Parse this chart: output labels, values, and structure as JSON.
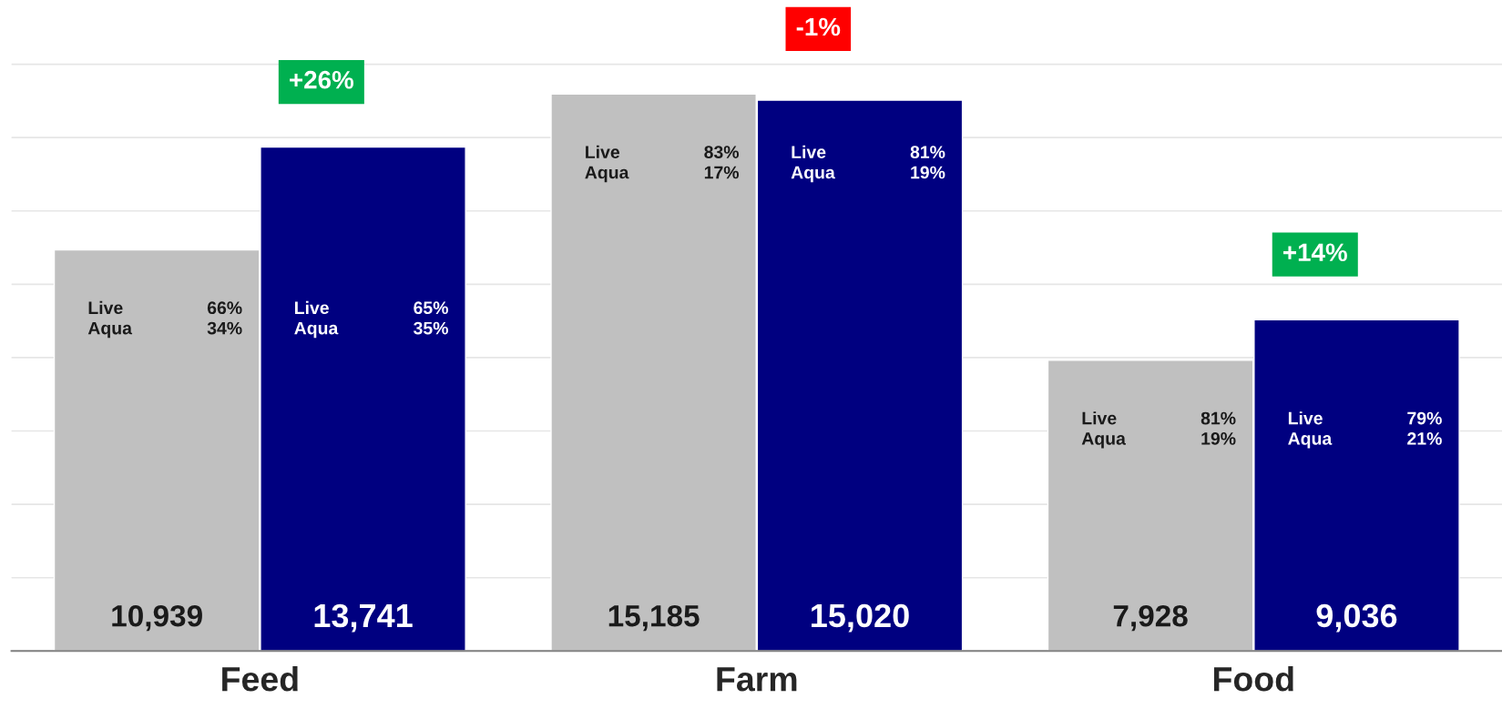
{
  "chart_data": {
    "type": "bar",
    "categories": [
      "Feed",
      "Farm",
      "Food"
    ],
    "series": [
      {
        "color": "#c0c0c0",
        "values": [
          10939,
          15185,
          7928
        ],
        "value_labels": [
          "10,939",
          "15,185",
          "7,928"
        ]
      },
      {
        "color": "#000080",
        "values": [
          13741,
          15020,
          9036
        ],
        "value_labels": [
          "13,741",
          "15,020",
          "9,036"
        ]
      }
    ],
    "grid": "y",
    "tick_labels": "x",
    "annotations": [
      "+26%",
      "-1%",
      "+14%",
      "Live\nAqua",
      "66%\n34%",
      "Live\nAqua",
      "65%\n35%",
      "Live\nAqua",
      "83%\n17%",
      "Live\nAqua",
      "81%\n19%",
      "Live\nAqua",
      "81%\n19%",
      "Live\nAqua",
      "79%\n21%"
    ]
  }
}
